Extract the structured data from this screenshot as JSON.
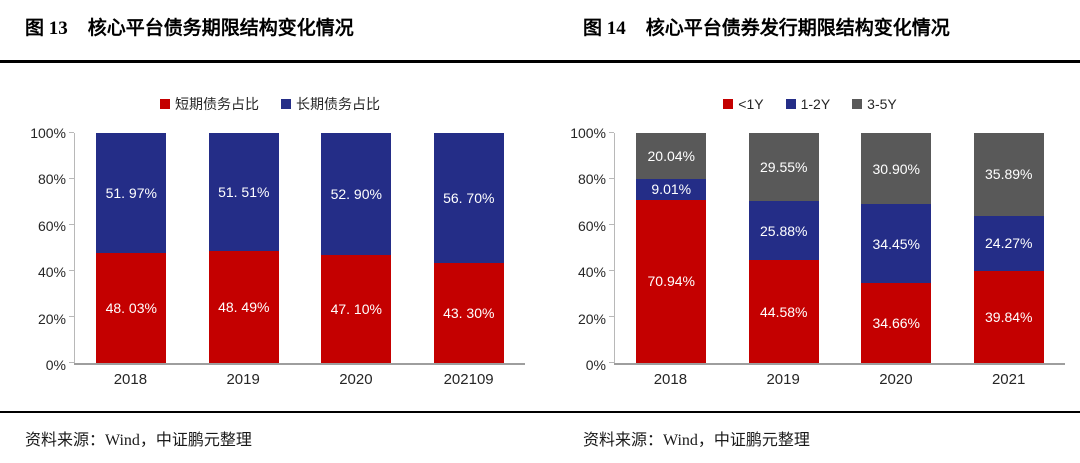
{
  "page": {
    "figures": [
      {
        "fig_label": "图 13",
        "fig_title": "核心平台债务期限结构变化情况",
        "source": "资料来源：Wind，中证鹏元整理"
      },
      {
        "fig_label": "图 14",
        "fig_title": "核心平台债券发行期限结构变化情况",
        "source": "资料来源：Wind，中证鹏元整理"
      }
    ]
  },
  "chart_data": [
    {
      "type": "bar",
      "stacked": true,
      "title": "核心平台债务期限结构变化情况",
      "categories": [
        "2018",
        "2019",
        "2020",
        "202109"
      ],
      "series": [
        {
          "name": "短期债务占比",
          "color": "#c40000",
          "values": [
            48.03,
            48.49,
            47.1,
            43.3
          ],
          "labels": [
            "48. 03%",
            "48. 49%",
            "47. 10%",
            "43. 30%"
          ]
        },
        {
          "name": "长期债务占比",
          "color": "#242d87",
          "values": [
            51.97,
            51.51,
            52.9,
            56.7
          ],
          "labels": [
            "51. 97%",
            "51. 51%",
            "52. 90%",
            "56. 70%"
          ]
        }
      ],
      "ylim": [
        0,
        100
      ],
      "yticks": [
        "0%",
        "20%",
        "40%",
        "60%",
        "80%",
        "100%"
      ],
      "legend_position": "top",
      "grid": false
    },
    {
      "type": "bar",
      "stacked": true,
      "title": "核心平台债券发行期限结构变化情况",
      "categories": [
        "2018",
        "2019",
        "2020",
        "2021"
      ],
      "series": [
        {
          "name": "<1Y",
          "color": "#c40000",
          "values": [
            70.94,
            44.58,
            34.66,
            39.84
          ],
          "labels": [
            "70.94%",
            "44.58%",
            "34.66%",
            "39.84%"
          ]
        },
        {
          "name": "1-2Y",
          "color": "#242d87",
          "values": [
            9.01,
            25.88,
            34.45,
            24.27
          ],
          "labels": [
            "9.01%",
            "25.88%",
            "34.45%",
            "24.27%"
          ]
        },
        {
          "name": "3-5Y",
          "color": "#595959",
          "values": [
            20.04,
            29.55,
            30.9,
            35.89
          ],
          "labels": [
            "20.04%",
            "29.55%",
            "30.90%",
            "35.89%"
          ]
        }
      ],
      "ylim": [
        0,
        100
      ],
      "yticks": [
        "0%",
        "20%",
        "40%",
        "60%",
        "80%",
        "100%"
      ],
      "legend_position": "top",
      "grid": false
    }
  ]
}
